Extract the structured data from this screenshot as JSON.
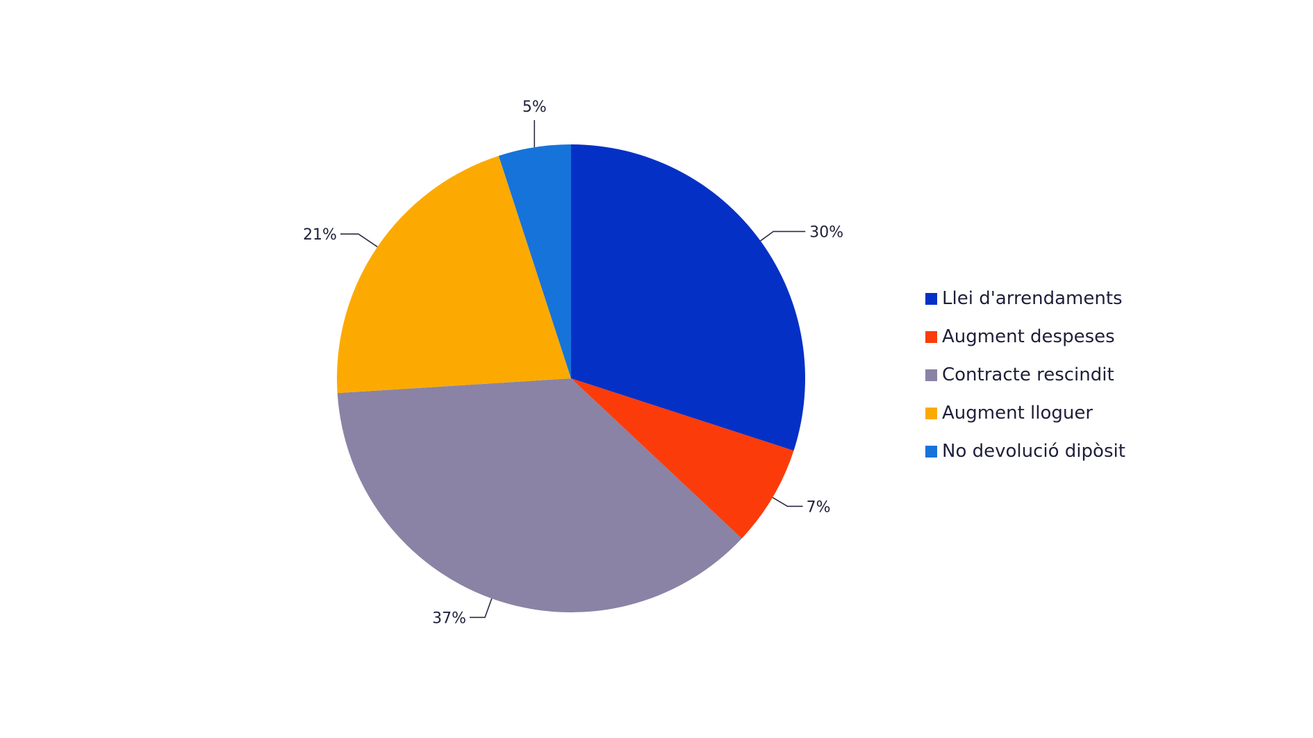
{
  "chart_data": {
    "type": "pie",
    "title": "",
    "start_angle_deg": 0,
    "direction": "clockwise",
    "legend_position": "right",
    "slices": [
      {
        "label": "Llei d'arrendaments",
        "value": 30,
        "value_label": "30%",
        "color": "#0530c6"
      },
      {
        "label": "Augment despeses",
        "value": 7,
        "value_label": "7%",
        "color": "#fb3c0a"
      },
      {
        "label": "Contracte rescindit",
        "value": 37,
        "value_label": "37%",
        "color": "#8a83a5"
      },
      {
        "label": "Augment lloguer",
        "value": 21,
        "value_label": "21%",
        "color": "#fcaa02"
      },
      {
        "label": "No devolució dipòsit",
        "value": 5,
        "value_label": "5%",
        "color": "#1673da"
      }
    ]
  }
}
